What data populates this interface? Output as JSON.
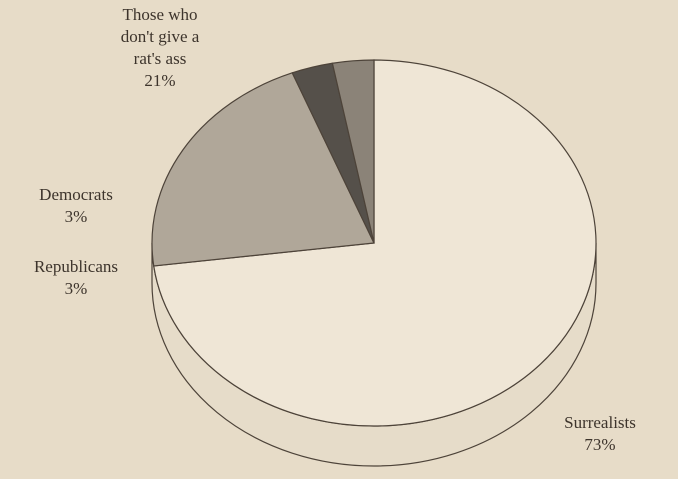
{
  "chart_data": {
    "type": "pie",
    "style": "3d",
    "slices": [
      {
        "label": "Surrealists",
        "percent_label": "73%",
        "value": 73,
        "color": "#efe6d6"
      },
      {
        "label": "Those who\ndon't give a\nrat's ass",
        "percent_label": "21%",
        "value": 21,
        "color": "#b0a799"
      },
      {
        "label": "Democrats",
        "percent_label": "3%",
        "value": 3,
        "color": "#55504a"
      },
      {
        "label": "Republicans",
        "percent_label": "3%",
        "value": 3,
        "color": "#8b8378"
      }
    ],
    "title": "",
    "legend": "none"
  },
  "colors": {
    "background": "#e7dcc8",
    "outline": "#4d4339",
    "text": "#3d342c",
    "side": "#e6dcc9"
  }
}
